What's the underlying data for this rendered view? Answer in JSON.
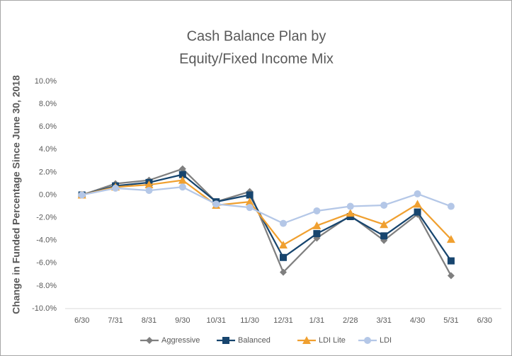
{
  "chart_data": {
    "type": "line",
    "title": [
      "Cash Balance Plan by",
      "Equity/Fixed Income Mix"
    ],
    "y_label": "Change in Funded Percentage Since June 30, 2018",
    "categories": [
      "6/30",
      "7/31",
      "8/31",
      "9/30",
      "10/31",
      "11/30",
      "12/31",
      "1/31",
      "2/28",
      "3/31",
      "4/30",
      "5/31",
      "6/30"
    ],
    "series": [
      {
        "name": "Aggressive",
        "color": "#7f7f7f",
        "marker": "diamond",
        "values": [
          0,
          1.0,
          1.3,
          2.3,
          -0.6,
          0.3,
          -6.8,
          -3.8,
          -1.8,
          -4.0,
          -1.7,
          -7.1,
          null
        ]
      },
      {
        "name": "Balanced",
        "color": "#17456e",
        "marker": "square",
        "values": [
          0,
          0.8,
          1.1,
          1.8,
          -0.6,
          0.0,
          -5.5,
          -3.4,
          -1.9,
          -3.6,
          -1.5,
          -5.8,
          null
        ]
      },
      {
        "name": "LDI Lite",
        "color": "#f0a030",
        "marker": "triangle",
        "values": [
          0,
          0.7,
          0.9,
          1.3,
          -0.9,
          -0.6,
          -4.4,
          -2.7,
          -1.6,
          -2.6,
          -0.8,
          -3.9,
          null
        ]
      },
      {
        "name": "LDI",
        "color": "#b4c7e7",
        "marker": "circle",
        "values": [
          0,
          0.6,
          0.4,
          0.7,
          -0.8,
          -1.1,
          -2.5,
          -1.4,
          -1.0,
          -0.9,
          0.1,
          -1.0,
          null
        ]
      }
    ],
    "ylim": [
      -10,
      10
    ],
    "yticks": [
      {
        "value": -10,
        "label": "-10.0%"
      },
      {
        "value": -8,
        "label": "-8.0%"
      },
      {
        "value": -6,
        "label": "-6.0%"
      },
      {
        "value": -4,
        "label": "-4.0%"
      },
      {
        "value": -2,
        "label": "-2.0%"
      },
      {
        "value": 0,
        "label": "0.0%"
      },
      {
        "value": 2,
        "label": "2.0%"
      },
      {
        "value": 4,
        "label": "4.0%"
      },
      {
        "value": 6,
        "label": "6.0%"
      },
      {
        "value": 8,
        "label": "8.0%"
      },
      {
        "value": 10,
        "label": "10.0%"
      }
    ],
    "grid": false,
    "legend": "bottom"
  }
}
